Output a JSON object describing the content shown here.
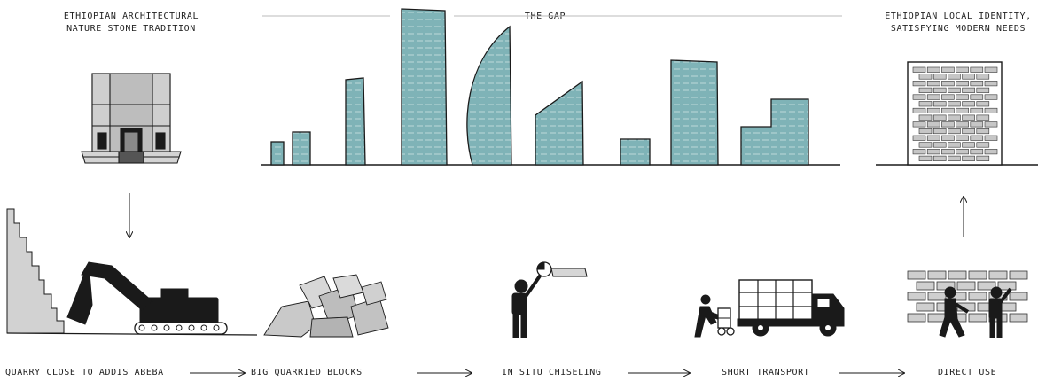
{
  "top": {
    "left_title_line1": "ETHIOPIAN ARCHITECTURAL",
    "left_title_line2": "NATURE STONE TRADITION",
    "center_title": "THE GAP",
    "right_title_line1": "ETHIOPIAN LOCAL IDENTITY,",
    "right_title_line2": "SATISFYING MODERN NEEDS"
  },
  "steps": [
    {
      "label": "QUARRY CLOSE TO ADDIS ABEBA"
    },
    {
      "label": "BIG QUARRIED BLOCKS"
    },
    {
      "label": "IN SITU CHISELING"
    },
    {
      "label": "SHORT TRANSPORT"
    },
    {
      "label": "DIRECT USE"
    }
  ],
  "colors": {
    "teal": "#7fb3b7",
    "ink": "#1a1a1a",
    "stone": "#b9b9b9"
  }
}
